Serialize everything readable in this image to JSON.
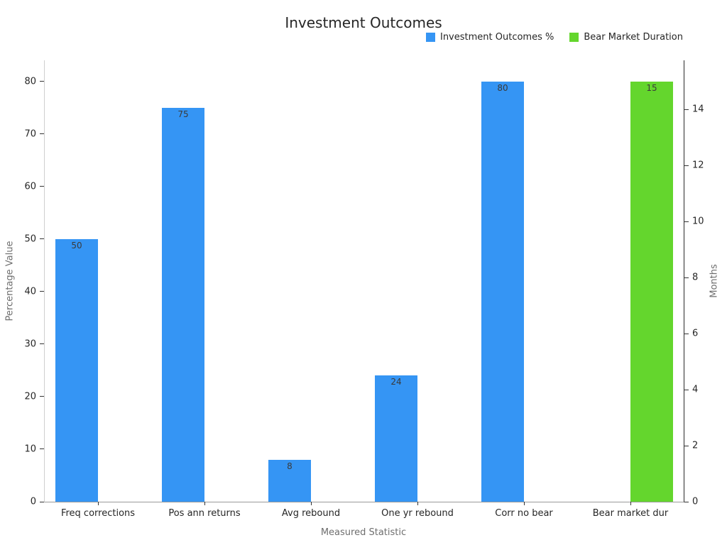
{
  "chart_data": {
    "type": "bar",
    "title": "Investment Outcomes",
    "xlabel": "Measured Statistic",
    "ylabel_left": "Percentage Value",
    "ylabel_right": "Months",
    "categories": [
      "Freq corrections",
      "Pos ann returns",
      "Avg rebound",
      "One yr rebound",
      "Corr no bear",
      "Bear market dur"
    ],
    "series": [
      {
        "name": "Investment Outcomes %",
        "axis": "left",
        "color": "#3595f4",
        "values": [
          50,
          75,
          8,
          24,
          80,
          null
        ]
      },
      {
        "name": "Bear Market Duration",
        "axis": "right",
        "color": "#64d62d",
        "values": [
          null,
          null,
          null,
          null,
          null,
          15
        ]
      }
    ],
    "ylim_left": [
      0,
      84
    ],
    "yticks_left": [
      0,
      10,
      20,
      30,
      40,
      50,
      60,
      70,
      80
    ],
    "ylim_right": [
      0,
      15.75
    ],
    "yticks_right": [
      0,
      2,
      4,
      6,
      8,
      10,
      12,
      14
    ],
    "grid": false,
    "legend_position": "top-right",
    "bar_value_labels": true
  }
}
